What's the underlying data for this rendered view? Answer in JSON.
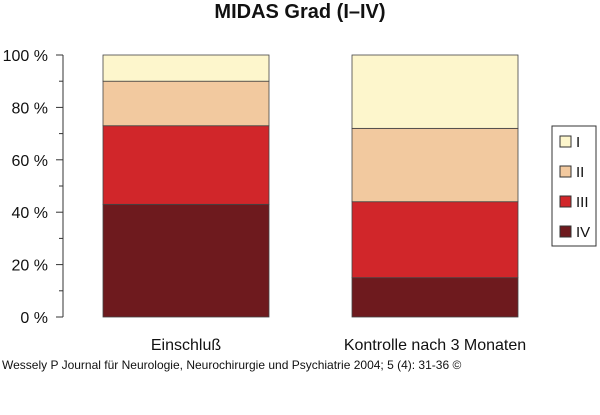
{
  "chart_data": {
    "type": "bar",
    "stacked": true,
    "title": "MIDAS Grad (I–IV)",
    "categories": [
      "Einschluß",
      "Kontrolle nach 3 Monaten"
    ],
    "series": [
      {
        "name": "IV",
        "values": [
          43,
          15
        ],
        "color": "#6e1a1e"
      },
      {
        "name": "III",
        "values": [
          30,
          29
        ],
        "color": "#d1262a"
      },
      {
        "name": "II",
        "values": [
          17,
          28
        ],
        "color": "#f2c99f"
      },
      {
        "name": "I",
        "values": [
          10,
          28
        ],
        "color": "#fdf6cc"
      }
    ],
    "ylim": [
      0,
      100
    ],
    "yticks": [
      0,
      20,
      40,
      60,
      80,
      100
    ],
    "ytick_labels": [
      "0 %",
      "20 %",
      "40 %",
      "60 %",
      "80 %",
      "100 %"
    ],
    "legend_order": [
      "I",
      "II",
      "III",
      "IV"
    ],
    "legend_position": "right",
    "grid": false
  },
  "credit": "Wessely P Journal für Neurologie, Neurochirurgie und Psychiatrie 2004; 5 (4): 31-36 ©"
}
